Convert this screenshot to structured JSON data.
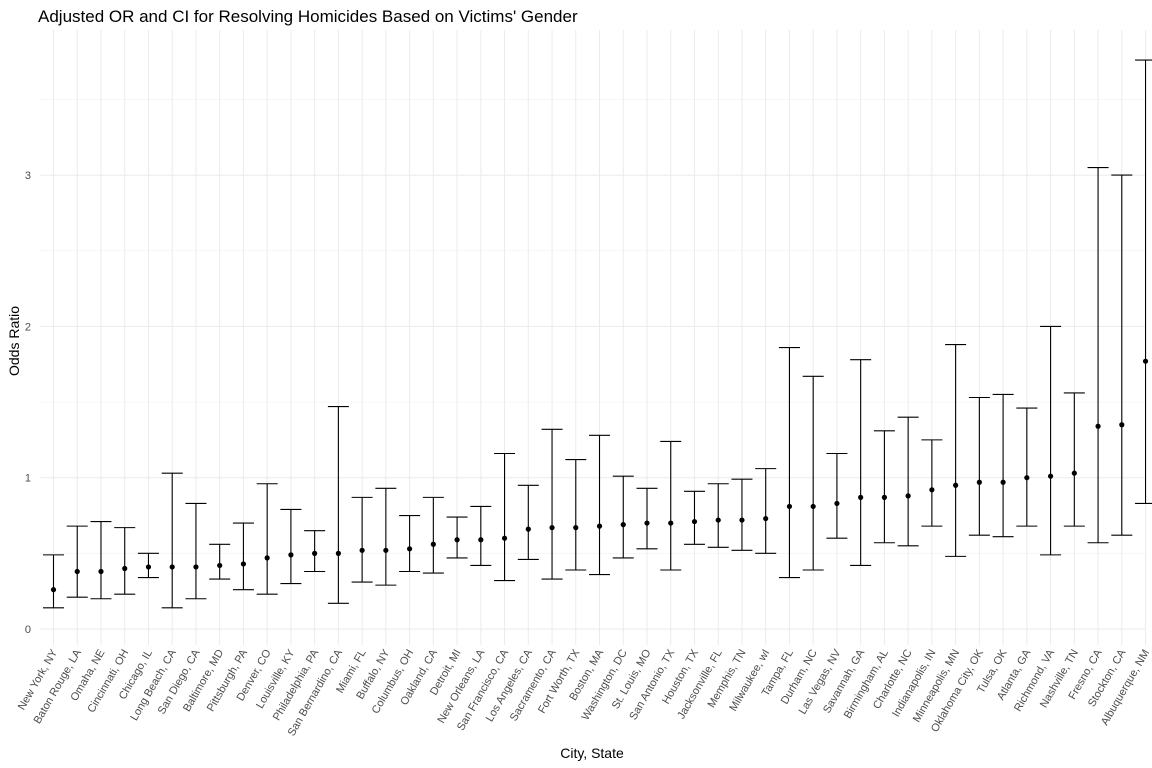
{
  "chart_data": {
    "type": "errorbar",
    "title": "Adjusted OR and CI for Resolving Homicides Based on Victims' Gender",
    "xlabel": "City, State",
    "ylabel": "Odds Ratio",
    "ylim": [
      0,
      3.77
    ],
    "yticks": [
      0,
      1,
      2,
      3
    ],
    "grid": true,
    "point_color": "#000000",
    "line_color": "#000000",
    "categories": [
      "New York, NY",
      "Baton Rouge, LA",
      "Omaha, NE",
      "Cincinnati, OH",
      "Chicago, IL",
      "Long Beach, CA",
      "San Diego, CA",
      "Baltimore, MD",
      "Pittsburgh, PA",
      "Denver, CO",
      "Louisville, KY",
      "Philadelphia, PA",
      "San Bernardino, CA",
      "Miami, FL",
      "Buffalo, NY",
      "Columbus, OH",
      "Oakland, CA",
      "Detroit, MI",
      "New Orleans, LA",
      "San Francisco, CA",
      "Los Angeles, CA",
      "Sacramento, CA",
      "Fort Worth, TX",
      "Boston, MA",
      "Washington, DC",
      "St. Louis, MO",
      "San Antonio, TX",
      "Houston, TX",
      "Jacksonville, FL",
      "Memphis, TN",
      "Milwaukee, wI",
      "Tampa, FL",
      "Durham, NC",
      "Las Vegas, NV",
      "Savannah, GA",
      "Birmingham, AL",
      "Charlotte, NC",
      "Indianapolis, IN",
      "Minneapolis, MN",
      "Oklahoma City, OK",
      "Tulsa, OK",
      "Atlanta, GA",
      "Richmond, VA",
      "Nashville, TN",
      "Fresno, CA",
      "Stockton, CA",
      "Albuquerque, NM"
    ],
    "or": [
      0.26,
      0.38,
      0.38,
      0.4,
      0.41,
      0.41,
      0.41,
      0.42,
      0.43,
      0.47,
      0.49,
      0.5,
      0.5,
      0.52,
      0.52,
      0.53,
      0.56,
      0.59,
      0.59,
      0.6,
      0.66,
      0.67,
      0.67,
      0.68,
      0.69,
      0.7,
      0.7,
      0.71,
      0.72,
      0.72,
      0.73,
      0.81,
      0.81,
      0.83,
      0.87,
      0.87,
      0.88,
      0.92,
      0.95,
      0.97,
      0.97,
      1.0,
      1.01,
      1.03,
      1.34,
      1.35,
      1.77
    ],
    "ci_low": [
      0.14,
      0.21,
      0.2,
      0.23,
      0.34,
      0.14,
      0.2,
      0.33,
      0.26,
      0.23,
      0.3,
      0.38,
      0.17,
      0.31,
      0.29,
      0.38,
      0.37,
      0.47,
      0.42,
      0.32,
      0.46,
      0.33,
      0.39,
      0.36,
      0.47,
      0.53,
      0.39,
      0.56,
      0.54,
      0.52,
      0.5,
      0.34,
      0.39,
      0.6,
      0.42,
      0.57,
      0.55,
      0.68,
      0.48,
      0.62,
      0.61,
      0.68,
      0.49,
      0.68,
      0.57,
      0.62,
      0.83
    ],
    "ci_high": [
      0.49,
      0.68,
      0.71,
      0.67,
      0.5,
      1.03,
      0.83,
      0.56,
      0.7,
      0.96,
      0.79,
      0.65,
      1.47,
      0.87,
      0.93,
      0.75,
      0.87,
      0.74,
      0.81,
      1.16,
      0.95,
      1.32,
      1.12,
      1.28,
      1.01,
      0.93,
      1.24,
      0.91,
      0.96,
      0.99,
      1.06,
      1.86,
      1.67,
      1.16,
      1.78,
      1.31,
      1.4,
      1.25,
      1.88,
      1.53,
      1.55,
      1.46,
      2.0,
      1.56,
      3.05,
      3.0,
      3.76
    ]
  }
}
